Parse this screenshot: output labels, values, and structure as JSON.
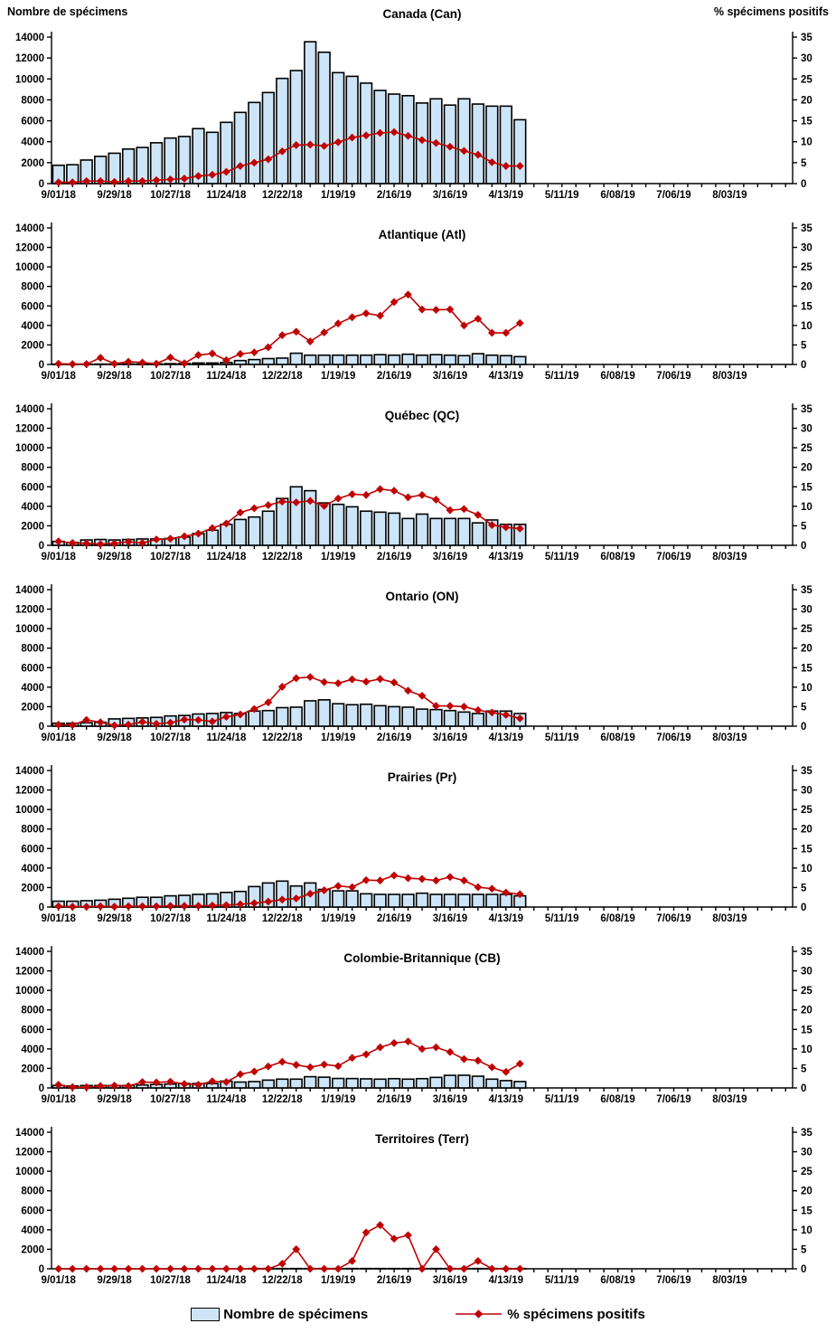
{
  "header": {
    "left_axis_title": "Nombre de spécimens",
    "right_axis_title": "% spécimens positifs"
  },
  "legend": {
    "bars_label": "Nombre de spécimens",
    "line_label": "% spécimens positifs"
  },
  "colors": {
    "bar_fill": "#cee5f7",
    "bar_stroke": "#000000",
    "line": "#c00000",
    "axis": "#000000",
    "text": "#000000"
  },
  "axes": {
    "left_ticks": [
      0,
      2000,
      4000,
      6000,
      8000,
      10000,
      12000,
      14000
    ],
    "right_ticks": [
      0,
      5,
      10,
      15,
      20,
      25,
      30,
      35
    ],
    "left_range": [
      0,
      14000
    ],
    "right_range": [
      0,
      35
    ],
    "weeks_total": 53,
    "label_every": 4,
    "x_tick_labels": [
      "9/01/18",
      "9/29/18",
      "10/27/18",
      "11/24/18",
      "12/22/18",
      "1/19/19",
      "2/16/19",
      "3/16/19",
      "4/13/19",
      "5/11/19",
      "6/08/19",
      "7/06/19",
      "8/03/19"
    ]
  },
  "chart_data": [
    {
      "type": "bar+line",
      "title": "Canada (Can)",
      "categories": [
        "9/01/18",
        "9/08/18",
        "9/15/18",
        "9/22/18",
        "9/29/18",
        "10/06/18",
        "10/13/18",
        "10/20/18",
        "10/27/18",
        "11/03/18",
        "11/10/18",
        "11/17/18",
        "11/24/18",
        "12/01/18",
        "12/08/18",
        "12/15/18",
        "12/22/18",
        "12/29/18",
        "1/05/19",
        "1/12/19",
        "1/19/19",
        "1/26/19",
        "2/02/19",
        "2/09/19",
        "2/16/19",
        "2/23/19",
        "3/02/19",
        "3/09/19",
        "3/16/19",
        "3/23/19",
        "3/30/19",
        "4/06/19",
        "4/13/19",
        "4/20/19"
      ],
      "series": [
        {
          "name": "Nombre de spécimens",
          "type": "bar",
          "axis": "left",
          "values": [
            1750,
            1800,
            2250,
            2600,
            2900,
            3300,
            3450,
            3900,
            4350,
            4500,
            5250,
            4900,
            5850,
            6800,
            7750,
            8700,
            10050,
            10800,
            13550,
            12550,
            10600,
            10250,
            9600,
            8900,
            8550,
            8400,
            7700,
            8100,
            7500,
            8100,
            7600,
            7400,
            7400,
            6100
          ]
        },
        {
          "name": "% spécimens positifs",
          "type": "line",
          "axis": "right",
          "values": [
            0.3,
            0.3,
            0.6,
            0.6,
            0.4,
            0.6,
            0.6,
            0.8,
            1.0,
            1.2,
            1.8,
            2.1,
            2.8,
            4.2,
            5.0,
            5.8,
            7.7,
            9.2,
            9.3,
            9.0,
            9.9,
            11.0,
            11.5,
            12.1,
            12.3,
            11.4,
            10.4,
            9.7,
            8.8,
            7.8,
            6.9,
            5.1,
            4.2,
            4.2
          ]
        }
      ]
    },
    {
      "type": "bar+line",
      "title": "Atlantique (Atl)",
      "categories": [
        "9/01/18",
        "9/08/18",
        "9/15/18",
        "9/22/18",
        "9/29/18",
        "10/06/18",
        "10/13/18",
        "10/20/18",
        "10/27/18",
        "11/03/18",
        "11/10/18",
        "11/17/18",
        "11/24/18",
        "12/01/18",
        "12/08/18",
        "12/15/18",
        "12/22/18",
        "12/29/18",
        "1/05/19",
        "1/12/19",
        "1/19/19",
        "1/26/19",
        "2/02/19",
        "2/09/19",
        "2/16/19",
        "2/23/19",
        "3/02/19",
        "3/09/19",
        "3/16/19",
        "3/23/19",
        "3/30/19",
        "4/06/19",
        "4/13/19",
        "4/20/19"
      ],
      "series": [
        {
          "name": "Nombre de spécimens",
          "type": "bar",
          "axis": "left",
          "values": [
            30,
            30,
            30,
            40,
            40,
            50,
            50,
            60,
            80,
            100,
            150,
            150,
            200,
            400,
            500,
            600,
            650,
            1150,
            950,
            950,
            950,
            950,
            950,
            1000,
            950,
            1050,
            950,
            1000,
            950,
            900,
            1100,
            950,
            900,
            800
          ]
        },
        {
          "name": "% spécimens positifs",
          "type": "line",
          "axis": "right",
          "values": [
            0.2,
            0.1,
            0.1,
            1.7,
            0.2,
            0.7,
            0.5,
            0.2,
            1.8,
            0.3,
            2.4,
            2.8,
            1.1,
            2.7,
            3.1,
            4.4,
            7.5,
            8.4,
            5.9,
            8.2,
            10.5,
            12.1,
            13.1,
            12.5,
            16.0,
            17.9,
            14.1,
            14.0,
            14.1,
            10.0,
            11.7,
            8.1,
            8.1,
            10.6
          ]
        }
      ]
    },
    {
      "type": "bar+line",
      "title": "Québec (QC)",
      "categories": [
        "9/01/18",
        "9/08/18",
        "9/15/18",
        "9/22/18",
        "9/29/18",
        "10/06/18",
        "10/13/18",
        "10/20/18",
        "10/27/18",
        "11/03/18",
        "11/10/18",
        "11/17/18",
        "11/24/18",
        "12/01/18",
        "12/08/18",
        "12/15/18",
        "12/22/18",
        "12/29/18",
        "1/05/19",
        "1/12/19",
        "1/19/19",
        "1/26/19",
        "2/02/19",
        "2/09/19",
        "2/16/19",
        "2/23/19",
        "3/02/19",
        "3/09/19",
        "3/16/19",
        "3/23/19",
        "3/30/19",
        "4/06/19",
        "4/13/19",
        "4/20/19"
      ],
      "series": [
        {
          "name": "Nombre de spécimens",
          "type": "bar",
          "axis": "left",
          "values": [
            400,
            300,
            550,
            600,
            550,
            600,
            650,
            650,
            700,
            850,
            1200,
            1550,
            2150,
            2650,
            2900,
            3500,
            4800,
            6000,
            5600,
            4350,
            4200,
            3950,
            3500,
            3400,
            3300,
            2750,
            3200,
            2750,
            2750,
            2750,
            2300,
            2600,
            2150,
            2150
          ]
        },
        {
          "name": "% spécimens positifs",
          "type": "line",
          "axis": "right",
          "values": [
            1.0,
            0.6,
            0.5,
            0.3,
            0.5,
            0.9,
            0.6,
            1.5,
            1.7,
            2.3,
            3.0,
            4.4,
            5.6,
            8.4,
            9.5,
            10.3,
            11.2,
            11.0,
            11.4,
            10.1,
            12.0,
            13.1,
            12.9,
            14.4,
            14.0,
            12.3,
            12.9,
            11.7,
            9.0,
            9.3,
            7.8,
            5.2,
            4.6,
            4.3
          ]
        }
      ]
    },
    {
      "type": "bar+line",
      "title": "Ontario (ON)",
      "categories": [
        "9/01/18",
        "9/08/18",
        "9/15/18",
        "9/22/18",
        "9/29/18",
        "10/06/18",
        "10/13/18",
        "10/20/18",
        "10/27/18",
        "11/03/18",
        "11/10/18",
        "11/17/18",
        "11/24/18",
        "12/01/18",
        "12/08/18",
        "12/15/18",
        "12/22/18",
        "12/29/18",
        "1/05/19",
        "1/12/19",
        "1/19/19",
        "1/26/19",
        "2/02/19",
        "2/09/19",
        "2/16/19",
        "2/23/19",
        "3/02/19",
        "3/09/19",
        "3/16/19",
        "3/23/19",
        "3/30/19",
        "4/06/19",
        "4/13/19",
        "4/20/19"
      ],
      "series": [
        {
          "name": "Nombre de spécimens",
          "type": "bar",
          "axis": "left",
          "values": [
            300,
            300,
            350,
            400,
            750,
            800,
            850,
            900,
            1050,
            1100,
            1250,
            1300,
            1400,
            1300,
            1550,
            1600,
            1900,
            1950,
            2600,
            2700,
            2300,
            2200,
            2250,
            2100,
            2000,
            1950,
            1750,
            1700,
            1600,
            1450,
            1300,
            1550,
            1550,
            1300
          ]
        },
        {
          "name": "% spécimens positifs",
          "type": "line",
          "axis": "right",
          "values": [
            0.4,
            0.3,
            1.6,
            1.0,
            0.2,
            0.4,
            1.1,
            0.6,
            0.9,
            1.7,
            1.6,
            1.2,
            2.4,
            3.0,
            4.4,
            6.1,
            10.1,
            12.3,
            12.6,
            11.3,
            11.0,
            12.0,
            11.4,
            12.1,
            11.2,
            9.1,
            7.8,
            5.2,
            5.2,
            5.0,
            4.1,
            3.5,
            2.9,
            2.0
          ]
        }
      ]
    },
    {
      "type": "bar+line",
      "title": "Prairies (Pr)",
      "categories": [
        "9/01/18",
        "9/08/18",
        "9/15/18",
        "9/22/18",
        "9/29/18",
        "10/06/18",
        "10/13/18",
        "10/20/18",
        "10/27/18",
        "11/03/18",
        "11/10/18",
        "11/17/18",
        "11/24/18",
        "12/01/18",
        "12/08/18",
        "12/15/18",
        "12/22/18",
        "12/29/18",
        "1/05/19",
        "1/12/19",
        "1/19/19",
        "1/26/19",
        "2/02/19",
        "2/09/19",
        "2/16/19",
        "2/23/19",
        "3/02/19",
        "3/09/19",
        "3/16/19",
        "3/23/19",
        "3/30/19",
        "4/06/19",
        "4/13/19",
        "4/20/19"
      ],
      "series": [
        {
          "name": "Nombre de spécimens",
          "type": "bar",
          "axis": "left",
          "values": [
            600,
            600,
            650,
            700,
            800,
            900,
            1000,
            1000,
            1150,
            1200,
            1300,
            1350,
            1500,
            1600,
            2100,
            2470,
            2660,
            2160,
            2470,
            1810,
            1660,
            1660,
            1360,
            1300,
            1300,
            1300,
            1420,
            1300,
            1300,
            1300,
            1300,
            1300,
            1300,
            1150
          ]
        },
        {
          "name": "% spécimens positifs",
          "type": "line",
          "axis": "right",
          "values": [
            0.2,
            0.1,
            0.1,
            0.2,
            0.1,
            0.2,
            0.2,
            0.2,
            0.3,
            0.3,
            0.3,
            0.4,
            0.5,
            0.7,
            1.0,
            1.4,
            1.9,
            2.2,
            3.4,
            4.3,
            5.4,
            5.1,
            6.9,
            6.8,
            8.1,
            7.4,
            7.2,
            6.8,
            7.7,
            6.8,
            5.1,
            4.7,
            3.7,
            3.3
          ]
        }
      ]
    },
    {
      "type": "bar+line",
      "title": "Colombie-Britannique (CB)",
      "categories": [
        "9/01/18",
        "9/08/18",
        "9/15/18",
        "9/22/18",
        "9/29/18",
        "10/06/18",
        "10/13/18",
        "10/20/18",
        "10/27/18",
        "11/03/18",
        "11/10/18",
        "11/17/18",
        "11/24/18",
        "12/01/18",
        "12/08/18",
        "12/15/18",
        "12/22/18",
        "12/29/18",
        "1/05/19",
        "1/12/19",
        "1/19/19",
        "1/26/19",
        "2/02/19",
        "2/09/19",
        "2/16/19",
        "2/23/19",
        "3/02/19",
        "3/09/19",
        "3/16/19",
        "3/23/19",
        "3/30/19",
        "4/06/19",
        "4/13/19",
        "4/20/19"
      ],
      "series": [
        {
          "name": "Nombre de spécimens",
          "type": "bar",
          "axis": "left",
          "values": [
            250,
            200,
            250,
            250,
            250,
            250,
            300,
            350,
            400,
            450,
            450,
            450,
            700,
            600,
            650,
            800,
            900,
            900,
            1150,
            1100,
            970,
            960,
            930,
            900,
            950,
            900,
            950,
            1080,
            1290,
            1300,
            1200,
            900,
            750,
            650
          ]
        },
        {
          "name": "% spécimens positifs",
          "type": "line",
          "axis": "right",
          "values": [
            0.8,
            0.2,
            0.2,
            0.5,
            0.6,
            0.5,
            1.5,
            1.4,
            1.6,
            1.0,
            0.8,
            1.7,
            1.5,
            3.5,
            4.2,
            5.5,
            6.7,
            5.9,
            5.3,
            6.0,
            5.6,
            7.7,
            8.6,
            10.4,
            11.5,
            11.9,
            10.0,
            10.4,
            9.2,
            7.4,
            7.0,
            5.3,
            4.1,
            6.2
          ]
        }
      ]
    },
    {
      "type": "bar+line",
      "title": "Territoires (Terr)",
      "categories": [
        "9/01/18",
        "9/08/18",
        "9/15/18",
        "9/22/18",
        "9/29/18",
        "10/06/18",
        "10/13/18",
        "10/20/18",
        "10/27/18",
        "11/03/18",
        "11/10/18",
        "11/17/18",
        "11/24/18",
        "12/01/18",
        "12/08/18",
        "12/15/18",
        "12/22/18",
        "12/29/18",
        "1/05/19",
        "1/12/19",
        "1/19/19",
        "1/26/19",
        "2/02/19",
        "2/09/19",
        "2/16/19",
        "2/23/19",
        "3/02/19",
        "3/09/19",
        "3/16/19",
        "3/23/19",
        "3/30/19",
        "4/06/19",
        "4/13/19",
        "4/20/19"
      ],
      "series": [
        {
          "name": "Nombre de spécimens",
          "type": "bar",
          "axis": "left",
          "values": [
            0,
            0,
            0,
            0,
            0,
            0,
            0,
            0,
            0,
            0,
            0,
            0,
            0,
            0,
            30,
            30,
            30,
            30,
            30,
            30,
            30,
            30,
            30,
            30,
            30,
            30,
            30,
            30,
            30,
            30,
            30,
            30,
            30,
            30
          ]
        },
        {
          "name": "% spécimens positifs",
          "type": "line",
          "axis": "right",
          "values": [
            0,
            0,
            0,
            0,
            0,
            0,
            0,
            0,
            0,
            0,
            0,
            0,
            0,
            0,
            0,
            0,
            1.3,
            5.0,
            0,
            0,
            0,
            2.0,
            9.3,
            11.2,
            7.7,
            8.6,
            0,
            5.0,
            0,
            0,
            2.0,
            0,
            0,
            0
          ]
        }
      ]
    }
  ]
}
